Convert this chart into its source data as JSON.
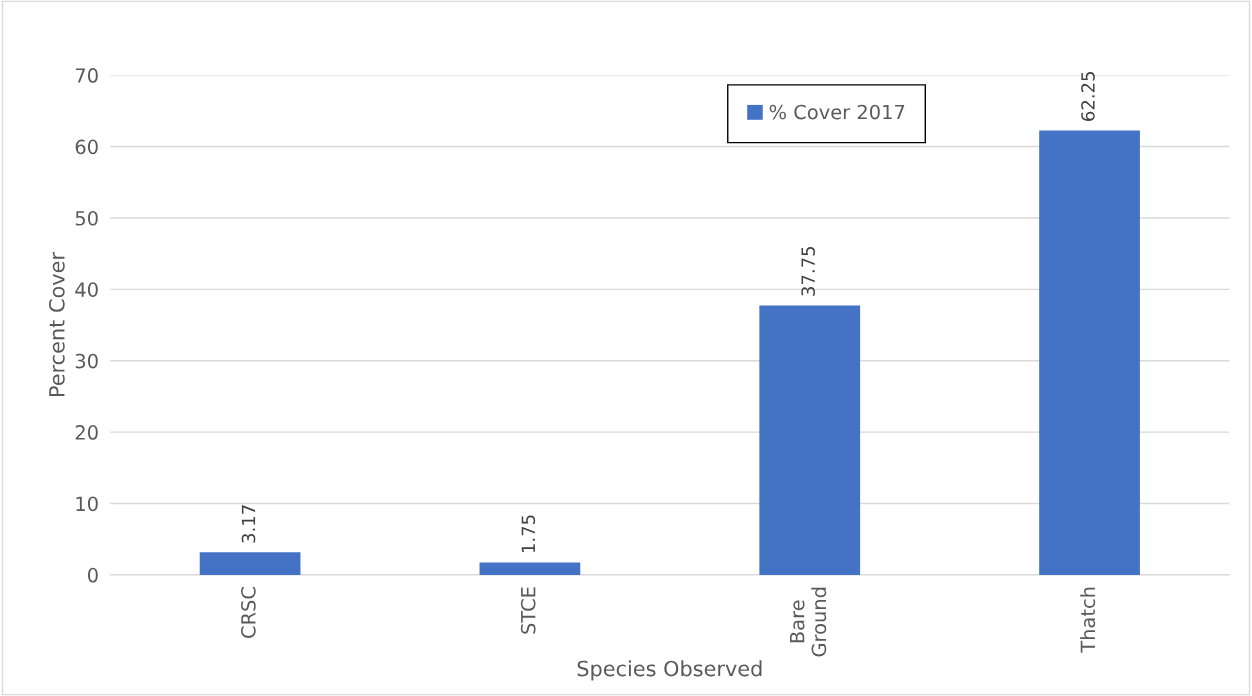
{
  "chart_data": {
    "type": "bar",
    "xlabel": "Species Observed",
    "ylabel": "Percent Cover",
    "categories": [
      "CRSC",
      "STCE",
      "Bare\nGround",
      "Thatch"
    ],
    "series": [
      {
        "name": "% Cover 2017",
        "color": "#4472c4",
        "values": [
          3.17,
          1.75,
          37.75,
          62.25
        ]
      }
    ],
    "ylim": [
      0,
      70
    ],
    "yticks": [
      0,
      10,
      20,
      30,
      40,
      50,
      60,
      70
    ],
    "grid": "y",
    "legend": "top",
    "data_labels": true
  }
}
